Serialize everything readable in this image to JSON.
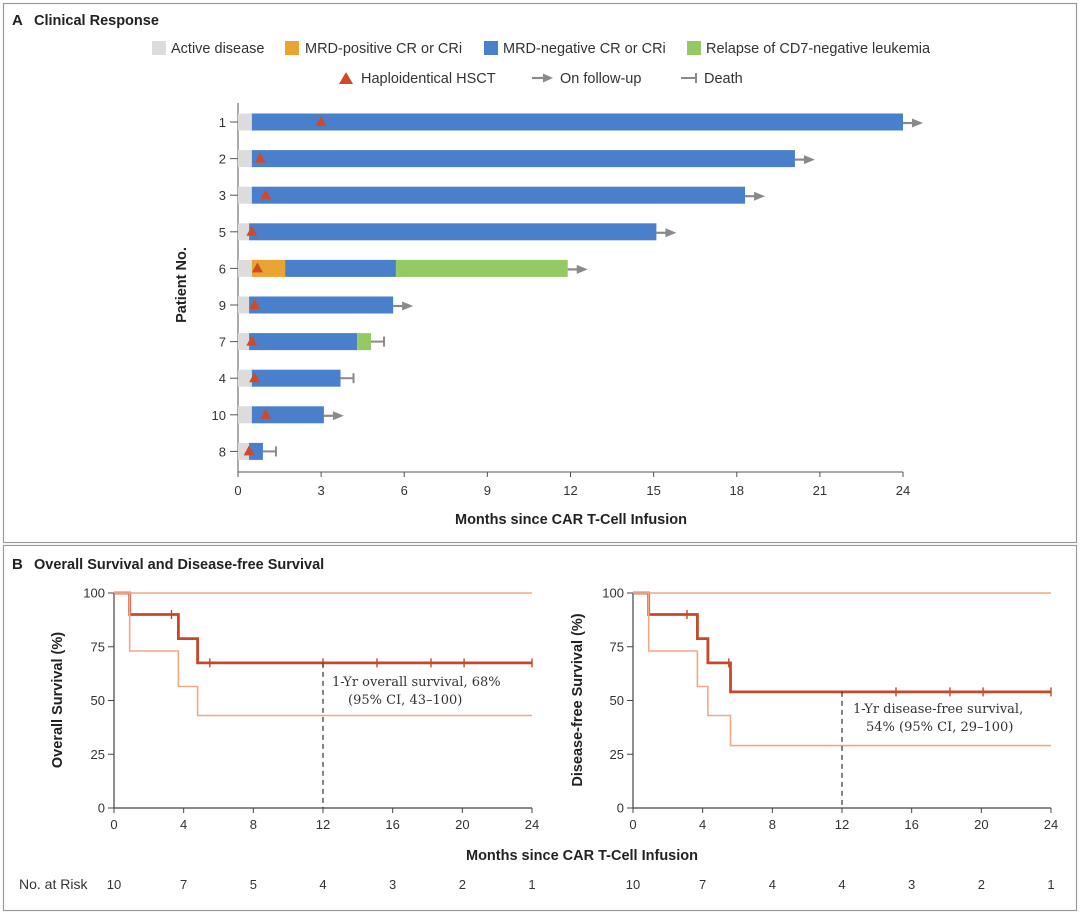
{
  "colors": {
    "active": "#dcdcdc",
    "mrd_pos": "#eaa431",
    "mrd_neg": "#4a7fcb",
    "relapse": "#95c964",
    "hsct": "#d04a27",
    "arrow": "#8a8a8a",
    "km_main": "#c8472a",
    "km_ci": "#f0a987",
    "border": "#9a9a9a"
  },
  "chart_data": [
    {
      "panel": "A",
      "type": "bar",
      "subtype": "swimmer",
      "title": "Clinical Response",
      "xlabel": "Months since CAR T-Cell Infusion",
      "ylabel": "Patient No.",
      "xlim": [
        0,
        24
      ],
      "xticks": [
        "0",
        "3",
        "6",
        "9",
        "12",
        "15",
        "18",
        "21",
        "24"
      ],
      "legend": [
        {
          "key": "active",
          "label": "Active disease",
          "marker": "square"
        },
        {
          "key": "mrd_pos",
          "label": "MRD-positive CR or CRi",
          "marker": "square"
        },
        {
          "key": "mrd_neg",
          "label": "MRD-negative CR or CRi",
          "marker": "square"
        },
        {
          "key": "relapse",
          "label": "Relapse of CD7-negative leukemia",
          "marker": "square"
        },
        {
          "key": "hsct",
          "label": "Haploidentical HSCT",
          "marker": "triangle"
        },
        {
          "key": "followup",
          "label": "On follow-up",
          "marker": "arrow"
        },
        {
          "key": "death",
          "label": "Death",
          "marker": "bar-end"
        }
      ],
      "patients": [
        {
          "id": "1",
          "segments": [
            {
              "state": "active",
              "from": 0,
              "to": 0.5
            },
            {
              "state": "mrd_neg",
              "from": 0.5,
              "to": 24
            }
          ],
          "hsct": 3.0,
          "end": "followup"
        },
        {
          "id": "2",
          "segments": [
            {
              "state": "active",
              "from": 0,
              "to": 0.5
            },
            {
              "state": "mrd_neg",
              "from": 0.5,
              "to": 20.1
            }
          ],
          "hsct": 0.8,
          "end": "followup"
        },
        {
          "id": "3",
          "segments": [
            {
              "state": "active",
              "from": 0,
              "to": 0.5
            },
            {
              "state": "mrd_neg",
              "from": 0.5,
              "to": 18.3
            }
          ],
          "hsct": 1.0,
          "end": "followup"
        },
        {
          "id": "5",
          "segments": [
            {
              "state": "active",
              "from": 0,
              "to": 0.4
            },
            {
              "state": "mrd_neg",
              "from": 0.4,
              "to": 15.1
            }
          ],
          "hsct": 0.5,
          "end": "followup"
        },
        {
          "id": "6",
          "segments": [
            {
              "state": "active",
              "from": 0,
              "to": 0.5
            },
            {
              "state": "mrd_pos",
              "from": 0.5,
              "to": 1.7
            },
            {
              "state": "mrd_neg",
              "from": 1.7,
              "to": 5.7
            },
            {
              "state": "relapse",
              "from": 5.7,
              "to": 11.9
            }
          ],
          "hsct": 0.7,
          "end": "followup"
        },
        {
          "id": "9",
          "segments": [
            {
              "state": "active",
              "from": 0,
              "to": 0.4
            },
            {
              "state": "mrd_neg",
              "from": 0.4,
              "to": 5.6
            }
          ],
          "hsct": 0.6,
          "end": "followup"
        },
        {
          "id": "7",
          "segments": [
            {
              "state": "active",
              "from": 0,
              "to": 0.4
            },
            {
              "state": "mrd_neg",
              "from": 0.4,
              "to": 4.3
            },
            {
              "state": "relapse",
              "from": 4.3,
              "to": 4.8
            }
          ],
          "hsct": 0.5,
          "end": "death"
        },
        {
          "id": "4",
          "segments": [
            {
              "state": "active",
              "from": 0,
              "to": 0.5
            },
            {
              "state": "mrd_neg",
              "from": 0.5,
              "to": 3.7
            }
          ],
          "hsct": 0.6,
          "end": "death"
        },
        {
          "id": "10",
          "segments": [
            {
              "state": "active",
              "from": 0,
              "to": 0.5
            },
            {
              "state": "mrd_neg",
              "from": 0.5,
              "to": 3.1
            }
          ],
          "hsct": 1.0,
          "end": "followup"
        },
        {
          "id": "8",
          "segments": [
            {
              "state": "active",
              "from": 0,
              "to": 0.4
            },
            {
              "state": "mrd_neg",
              "from": 0.4,
              "to": 0.9
            }
          ],
          "hsct": 0.4,
          "end": "death"
        }
      ]
    },
    {
      "panel": "B",
      "type": "line",
      "subtype": "kaplan-meier",
      "title": "Overall Survival and Disease-free Survival",
      "xlabel": "Months since CAR T-Cell Infusion",
      "ylabel": "Overall Survival (%)",
      "xlim": [
        0,
        24
      ],
      "ylim": [
        0,
        100
      ],
      "xticks": [
        "0",
        "4",
        "8",
        "12",
        "16",
        "20",
        "24"
      ],
      "yticks": [
        "0",
        "25",
        "50",
        "75",
        "100"
      ],
      "series": [
        {
          "role": "estimate",
          "points": [
            [
              0,
              100
            ],
            [
              0.9,
              100
            ],
            [
              0.9,
              90
            ],
            [
              3.7,
              90
            ],
            [
              3.7,
              78.8
            ],
            [
              4.8,
              78.8
            ],
            [
              4.8,
              67.5
            ],
            [
              24,
              67.5
            ]
          ],
          "censors": [
            [
              3.3,
              90
            ],
            [
              5.5,
              67.5
            ],
            [
              12,
              67.5
            ],
            [
              15.1,
              67.5
            ],
            [
              18.2,
              67.5
            ],
            [
              20.1,
              67.5
            ],
            [
              24,
              67.5
            ]
          ]
        },
        {
          "role": "upper",
          "points": [
            [
              0,
              100
            ],
            [
              24,
              100
            ]
          ]
        },
        {
          "role": "lower",
          "points": [
            [
              0,
              100
            ],
            [
              0.9,
              100
            ],
            [
              0.9,
              73
            ],
            [
              3.7,
              73
            ],
            [
              3.7,
              56.5
            ],
            [
              4.8,
              56.5
            ],
            [
              4.8,
              43
            ],
            [
              24,
              43
            ]
          ]
        }
      ],
      "marker_x": 12,
      "annotation": [
        "1-Yr overall survival, 68%",
        "(95% CI, 43–100)"
      ],
      "risk": [
        "10",
        "7",
        "5",
        "4",
        "3",
        "2",
        "1"
      ]
    },
    {
      "panel": "B",
      "type": "line",
      "subtype": "kaplan-meier",
      "xlabel": "Months since CAR T-Cell Infusion",
      "ylabel": "Disease-free Survival (%)",
      "xlim": [
        0,
        24
      ],
      "ylim": [
        0,
        100
      ],
      "xticks": [
        "0",
        "4",
        "8",
        "12",
        "16",
        "20",
        "24"
      ],
      "yticks": [
        "0",
        "25",
        "50",
        "75",
        "100"
      ],
      "series": [
        {
          "role": "estimate",
          "points": [
            [
              0,
              100
            ],
            [
              0.9,
              100
            ],
            [
              0.9,
              90
            ],
            [
              3.7,
              90
            ],
            [
              3.7,
              78.8
            ],
            [
              4.3,
              78.8
            ],
            [
              4.3,
              67.5
            ],
            [
              5.6,
              67.5
            ],
            [
              5.6,
              54
            ],
            [
              24,
              54
            ]
          ],
          "censors": [
            [
              3.1,
              90
            ],
            [
              5.5,
              67.5
            ],
            [
              15.1,
              54
            ],
            [
              18.2,
              54
            ],
            [
              20.1,
              54
            ],
            [
              24,
              54
            ]
          ]
        },
        {
          "role": "upper",
          "points": [
            [
              0,
              100
            ],
            [
              24,
              100
            ]
          ]
        },
        {
          "role": "lower",
          "points": [
            [
              0,
              100
            ],
            [
              0.9,
              100
            ],
            [
              0.9,
              73
            ],
            [
              3.7,
              73
            ],
            [
              3.7,
              56.5
            ],
            [
              4.3,
              56.5
            ],
            [
              4.3,
              43
            ],
            [
              5.6,
              43
            ],
            [
              5.6,
              29
            ],
            [
              24,
              29
            ]
          ]
        }
      ],
      "marker_x": 12,
      "annotation": [
        "1-Yr disease-free survival,",
        "54% (95% CI, 29–100)"
      ],
      "risk": [
        "10",
        "7",
        "4",
        "4",
        "3",
        "2",
        "1"
      ]
    }
  ],
  "risk_label": "No. at Risk"
}
